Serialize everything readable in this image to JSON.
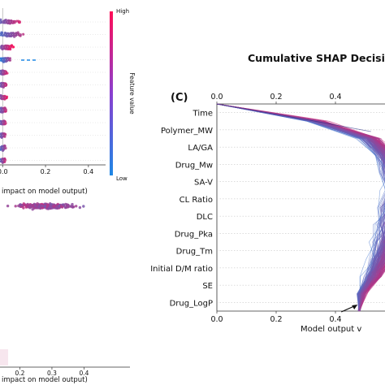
{
  "chart_data": [
    {
      "type": "scatter",
      "panel": "summary-plot-top (partial, cropped left)",
      "xlabel": "impact on model output)",
      "xticks": [
        "0.0",
        "0.2",
        "0.4"
      ],
      "xlim": [
        -0.05,
        0.48
      ],
      "colorbar": {
        "label": "Feature value",
        "high": "High",
        "low": "Low",
        "colors": [
          "#1e88e5",
          "#ff0d57"
        ]
      },
      "rows": [
        {
          "center": 0.02,
          "spread": 0.09,
          "pink_bias": 0.5
        },
        {
          "center": 0.03,
          "spread": 0.11,
          "pink_bias": 0.4
        },
        {
          "center": 0.02,
          "spread": 0.05,
          "pink_bias": 0.7
        },
        {
          "center": 0.01,
          "spread": 0.04,
          "pink_bias": 0.3
        },
        {
          "center": 0.0,
          "spread": 0.03,
          "pink_bias": 0.5
        },
        {
          "center": 0.0,
          "spread": 0.03,
          "pink_bias": 0.5
        },
        {
          "center": 0.0,
          "spread": 0.03,
          "pink_bias": 0.6
        },
        {
          "center": 0.0,
          "spread": 0.03,
          "pink_bias": 0.5
        },
        {
          "center": 0.0,
          "spread": 0.025,
          "pink_bias": 0.5
        },
        {
          "center": 0.0,
          "spread": 0.025,
          "pink_bias": 0.5
        },
        {
          "center": 0.0,
          "spread": 0.025,
          "pink_bias": 0.4
        },
        {
          "center": 0.0,
          "spread": 0.02,
          "pink_bias": 0.5
        }
      ]
    },
    {
      "type": "scatter",
      "panel": "summary-plot-bottom (partial, cropped left)",
      "xlabel": "impact on model output)",
      "xticks": [
        "0.2",
        "0.3",
        "0.4"
      ],
      "xlim": [
        0.1,
        0.48
      ],
      "rows": [
        {
          "center": 0.28,
          "spread": 0.15,
          "pink_bias": 0.8
        }
      ]
    },
    {
      "type": "line",
      "panel_label": "(C)",
      "title": "Cumulative SHAP Decisio",
      "xlabel": "Model output v",
      "xlim": [
        0.0,
        0.72
      ],
      "xticks_top": [
        "0.0",
        "0.2",
        "0.4"
      ],
      "xticks_bottom": [
        "0.0",
        "0.2",
        "0.4"
      ],
      "features": [
        "Time",
        "Polymer_MW",
        "LA/GA",
        "Drug_Mw",
        "SA-V",
        "CL Ratio",
        "DLC",
        "Drug_Pka",
        "Drug_Tm",
        "Initial D/M ratio",
        "SE",
        "Drug_LogP"
      ],
      "start_value": 0.0,
      "end_value_approx": 0.48,
      "cumulative_path_mean": [
        0.0,
        0.34,
        0.52,
        0.58,
        0.6,
        0.61,
        0.6,
        0.59,
        0.58,
        0.56,
        0.53,
        0.49,
        0.48
      ],
      "spread_per_level": [
        0.0,
        0.06,
        0.07,
        0.08,
        0.08,
        0.09,
        0.09,
        0.09,
        0.09,
        0.08,
        0.06,
        0.03,
        0.0
      ],
      "color_low": "#1e88e5",
      "color_high": "#ff0d57"
    }
  ]
}
